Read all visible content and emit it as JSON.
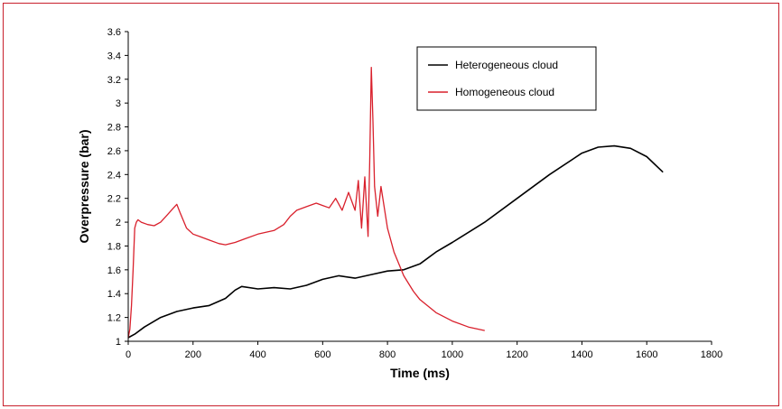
{
  "chart_data": {
    "type": "line",
    "xlabel": "Time (ms)",
    "ylabel": "Overpressure (bar)",
    "xlim": [
      0,
      1800
    ],
    "ylim": [
      1,
      3.6
    ],
    "xticks": [
      0,
      200,
      400,
      600,
      800,
      1000,
      1200,
      1400,
      1600,
      1800
    ],
    "yticks": [
      1,
      1.2,
      1.4,
      1.6,
      1.8,
      2,
      2.2,
      2.4,
      2.6,
      2.8,
      3,
      3.2,
      3.4,
      3.6
    ],
    "grid": false,
    "legend_position": "top-right",
    "series": [
      {
        "name": "Heterogeneous cloud",
        "color": "#000000",
        "x": [
          0,
          20,
          50,
          100,
          150,
          200,
          250,
          300,
          330,
          350,
          400,
          450,
          500,
          550,
          600,
          650,
          700,
          750,
          800,
          850,
          900,
          950,
          1000,
          1100,
          1200,
          1300,
          1400,
          1450,
          1500,
          1550,
          1600,
          1650
        ],
        "y": [
          1.03,
          1.06,
          1.12,
          1.2,
          1.25,
          1.28,
          1.3,
          1.36,
          1.43,
          1.46,
          1.44,
          1.45,
          1.44,
          1.47,
          1.52,
          1.55,
          1.53,
          1.56,
          1.59,
          1.6,
          1.65,
          1.75,
          1.83,
          2.0,
          2.2,
          2.4,
          2.58,
          2.63,
          2.64,
          2.62,
          2.55,
          2.42
        ]
      },
      {
        "name": "Homogeneous cloud",
        "color": "#d9202c",
        "x": [
          0,
          5,
          10,
          15,
          20,
          25,
          30,
          40,
          60,
          80,
          100,
          120,
          140,
          150,
          160,
          180,
          200,
          220,
          250,
          280,
          300,
          330,
          360,
          400,
          450,
          480,
          500,
          520,
          550,
          580,
          600,
          620,
          640,
          660,
          680,
          700,
          710,
          720,
          730,
          740,
          745,
          750,
          755,
          760,
          770,
          780,
          800,
          820,
          850,
          880,
          900,
          950,
          1000,
          1050,
          1100
        ],
        "y": [
          1.03,
          1.1,
          1.3,
          1.6,
          1.95,
          2.0,
          2.02,
          2.0,
          1.98,
          1.97,
          2.0,
          2.06,
          2.12,
          2.15,
          2.08,
          1.95,
          1.9,
          1.88,
          1.85,
          1.82,
          1.81,
          1.83,
          1.86,
          1.9,
          1.93,
          1.98,
          2.05,
          2.1,
          2.13,
          2.16,
          2.14,
          2.12,
          2.2,
          2.1,
          2.25,
          2.1,
          2.35,
          1.95,
          2.38,
          1.88,
          2.5,
          3.3,
          2.85,
          2.3,
          2.05,
          2.3,
          1.95,
          1.75,
          1.55,
          1.42,
          1.35,
          1.24,
          1.17,
          1.12,
          1.09
        ]
      }
    ]
  }
}
